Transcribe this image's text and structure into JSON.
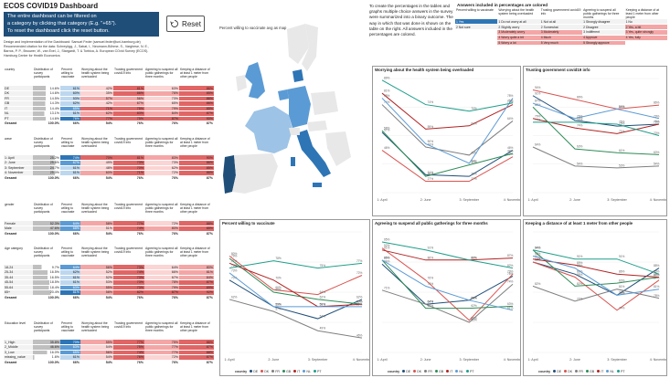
{
  "title": "ECOS COVID19 Dashboard",
  "intro": {
    "line1": "The entire dashboard can be filtered on",
    "line2": "a category by clicking that category (E.g. \"+65\").",
    "line3": "To reset the dashboard click the reset button."
  },
  "reset_label": "Reset",
  "credits": {
    "line1": "Design and implementation of the Dashboard: Samuel Feder (samuel.feder@uni-hamburg.de)",
    "line2": "Recommended citation for the data: Schreyögg, J., Sabat, I., Neumann-Böhme, S., Varghese, N. E.,",
    "line3": "Barros, P. P., Brouwer, W., van Exel, J., Stargardt, T. & Torbica, A. European COvid Survey (ECOS).",
    "line4": "Hamburg Center for Health Economics"
  },
  "colors": {
    "blue_dark": "#1f4e79",
    "bar_blue": "#2e75b6",
    "red1": "#e06666",
    "red2": "#f4a6a6",
    "red3": "#fbd4d4",
    "blue_light": "#bdd7ee",
    "gray": "#bfbfbf"
  },
  "col_headers": [
    "Distribution of survey participants",
    "Percent willing to vaccinate",
    "Worrying about the health system being overloaded",
    "Trusting government covid19 info",
    "Agreeing to suspend all public gatherings for three months",
    "Keeping a distance of at least 1 meter from other people"
  ],
  "sections": [
    {
      "name": "country",
      "rows": [
        {
          "label": "DE",
          "v": [
            "14.6%",
            "61%",
            "42%",
            "81%",
            "63%",
            "86%"
          ]
        },
        {
          "label": "DK",
          "v": [
            "14.6%",
            "60%",
            "35%",
            "86%",
            "76%",
            "85%"
          ]
        },
        {
          "label": "FR",
          "v": [
            "14.5%",
            "53%",
            "57%",
            "56%",
            "73%",
            "86%"
          ]
        },
        {
          "label": "GB",
          "v": [
            "14.3%",
            "62%",
            "42%",
            "67%",
            "65%",
            "86%"
          ]
        },
        {
          "label": "IT",
          "v": [
            "14.4%",
            "65%",
            "71%",
            "75%",
            "79%",
            "85%"
          ]
        },
        {
          "label": "NL",
          "v": [
            "13.1%",
            "61%",
            "62%",
            "83%",
            "84%",
            "87%"
          ]
        },
        {
          "label": "PT",
          "v": [
            "14.6%",
            "76%",
            "77%",
            "75%",
            "87%",
            "90%"
          ]
        }
      ],
      "total": {
        "label": "Gesamt",
        "v": [
          "100.0%",
          "66%",
          "54%",
          "76%",
          "76%",
          "87%"
        ]
      }
    },
    {
      "name": "wave",
      "rows": [
        {
          "label": "1: April",
          "v": [
            "25.2%",
            "74%",
            "70%",
            "81%",
            "83%",
            "90%"
          ]
        },
        {
          "label": "2: June",
          "v": [
            "25.6%",
            "67%",
            "49%",
            "73%",
            "73%",
            "86%"
          ]
        },
        {
          "label": "3: September",
          "v": [
            "24.7%",
            "61%",
            "48%",
            "70%",
            "62%",
            "85%"
          ]
        },
        {
          "label": "4: November",
          "v": "25.0%,61%,60%,71%,72%,86%"
        }
      ],
      "total": {
        "label": "Gesamt",
        "v": [
          "100.0%",
          "66%",
          "54%",
          "76%",
          "76%",
          "87%"
        ]
      }
    },
    {
      "name": "gender",
      "rows": [
        {
          "label": "Female",
          "v": [
            "52.3%",
            "64%",
            "58%",
            "77%",
            "72%",
            "88%"
          ]
        },
        {
          "label": "Male",
          "v": [
            "47.6%",
            "68%",
            "51%",
            "74%",
            "80%",
            "85%"
          ]
        }
      ],
      "total": {
        "label": "Gesamt",
        "v": [
          "100.0%",
          "66%",
          "54%",
          "76%",
          "76%",
          "87%"
        ]
      }
    },
    {
      "name": "Age category",
      "rows": [
        {
          "label": "18-24",
          "v": [
            "9.7%",
            "64%",
            "56%",
            "73%",
            "64%",
            "80%"
          ]
        },
        {
          "label": "25-34",
          "v": [
            "16.5%",
            "62%",
            "52%",
            "74%",
            "66%",
            "81%"
          ]
        },
        {
          "label": "35-44",
          "v": [
            "16.5%",
            "61%",
            "52%",
            "73%",
            "67%",
            "84%"
          ]
        },
        {
          "label": "45-54",
          "v": [
            "18.5%",
            "61%",
            "53%",
            "73%",
            "78%",
            "87%"
          ]
        },
        {
          "label": "55-64",
          "v": [
            "18.4%",
            "63%",
            "55%",
            "73%",
            "79%",
            "89%"
          ]
        },
        {
          "label": "65+",
          "v": [
            "20.4%",
            "81%",
            "58%",
            "82%",
            "87%",
            "92%"
          ]
        }
      ],
      "total": {
        "label": "Gesamt",
        "v": [
          "100.0%",
          "66%",
          "54%",
          "76%",
          "76%",
          "87%"
        ]
      }
    },
    {
      "name": "Education level",
      "rows": [
        {
          "label": "1_High",
          "v": [
            "35.8%",
            "70%",
            "55%",
            "77%",
            "75%",
            "86%"
          ]
        },
        {
          "label": "2_Middle",
          "v": [
            "46.6%",
            "63%",
            "54%",
            "75%",
            "77%",
            "87%"
          ]
        },
        {
          "label": "3_Low",
          "v": [
            "16.0%",
            "65%",
            "56%",
            "74%",
            "77%",
            "88%"
          ]
        },
        {
          "label": "missing_value",
          "v": [
            "1.6%",
            "61%",
            "54%",
            "76%",
            "72%",
            "87%"
          ]
        }
      ],
      "total": {
        "label": "Gesamt",
        "v": [
          "100.0%",
          "66%",
          "54%",
          "76%",
          "76%",
          "87%"
        ]
      }
    }
  ],
  "map_title": "Percent willing to vaccinate avg as map",
  "note": "To create the percentages in the tables and graphs multiple choice answers in the survey were summarized into a binary outcome. The way in which that was done is shown on the table on the right. All answers included in the percentages are colored.",
  "legend_table": {
    "title": "Answers included in percentages are colored",
    "headers": [
      "Percent willing to vaccinate",
      "Worrying about the health system being overloaded",
      "Trusting government covid19 info",
      "Agreeing to suspend all public gatherings for three months",
      "Keeping a distance of at least 1 meter from other people"
    ],
    "rows": [
      [
        "1 Yes",
        "1 Do not worry at all",
        "1 Not at all",
        "1 Strongly disagree",
        "1 No"
      ],
      [
        "2 Not sure",
        "2 Slightly worry",
        "2 Somewhat",
        "2 Disagree",
        "2 Yes, a bit"
      ],
      [
        "",
        "3 Moderately worry",
        "3 Moderately",
        "3 Indifferent",
        "3 Yes, quite strongly"
      ],
      [
        "",
        "4 Worry quite a bit",
        "4 Much",
        "4 Approve",
        "4 Yes, fully"
      ],
      [
        "",
        "5 Worry a lot",
        "5 Very much",
        "5 Strongly approve",
        ""
      ]
    ]
  },
  "chart_data": [
    {
      "type": "line",
      "title": "Worrying about the health system being overloaded",
      "categories": [
        "1: April",
        "2: June",
        "3: September",
        "4: November"
      ],
      "ylim": [
        20,
        90
      ],
      "series": [
        {
          "name": "DE",
          "values": [
            57,
            31,
            30,
            46
          ]
        },
        {
          "name": "DK",
          "values": [
            46,
            27,
            27,
            42
          ]
        },
        {
          "name": "FR",
          "values": [
            74,
            48,
            43,
            64
          ]
        },
        {
          "name": "GB",
          "values": [
            58,
            30,
            37,
            44
          ]
        },
        {
          "name": "IT",
          "values": [
            81,
            59,
            61,
            74
          ]
        },
        {
          "name": "NL",
          "values": [
            78,
            50,
            38,
            78
          ]
        },
        {
          "name": "PT",
          "values": [
            89,
            74,
            70,
            75
          ]
        }
      ]
    },
    {
      "type": "line",
      "title": "Trusting government covid19 info",
      "categories": [
        "1: April",
        "2: June",
        "3: September",
        "4: November"
      ],
      "ylim": [
        40,
        100
      ],
      "series": [
        {
          "name": "DE",
          "values": [
            91,
            78,
            75,
            76
          ]
        },
        {
          "name": "DK",
          "values": [
            94,
            89,
            84,
            86
          ]
        },
        {
          "name": "FR",
          "values": [
            64,
            54,
            53,
            54
          ]
        },
        {
          "name": "GB",
          "values": [
            85,
            63,
            61,
            60
          ]
        },
        {
          "name": "IT",
          "values": [
            79,
            74,
            71,
            76
          ]
        },
        {
          "name": "NL",
          "values": [
            87,
            79,
            84,
            79
          ]
        },
        {
          "name": "PT",
          "values": [
            77,
            77,
            76,
            70
          ]
        }
      ]
    },
    {
      "type": "line",
      "title": "Percent willing to vaccinate",
      "categories": [
        "1: April",
        "2: June",
        "3: September",
        "4: November"
      ],
      "ylim": [
        40,
        90
      ],
      "series": [
        {
          "name": "DE",
          "values": [
            70,
            59,
            54,
            62
          ]
        },
        {
          "name": "DK",
          "values": [
            80,
            66,
            64,
            72
          ]
        },
        {
          "name": "FR",
          "values": [
            62,
            57,
            49,
            46
          ]
        },
        {
          "name": "GB",
          "values": [
            79,
            65,
            62,
            60
          ]
        },
        {
          "name": "IT",
          "values": [
            77,
            70,
            59,
            60
          ]
        },
        {
          "name": "NL",
          "values": [
            73,
            59,
            59,
            59
          ]
        },
        {
          "name": "PT",
          "values": [
            75,
            78,
            75,
            77
          ]
        }
      ]
    },
    {
      "type": "line",
      "title": "Agreeing to suspend all public gatherings for three months",
      "categories": [
        "1: April",
        "2: June",
        "3: September",
        "4: November"
      ],
      "ylim": [
        40,
        100
      ],
      "series": [
        {
          "name": "DE",
          "values": [
            84,
            64,
            66,
            78
          ]
        },
        {
          "name": "DK",
          "values": [
            92,
            76,
            56,
            79
          ]
        },
        {
          "name": "FR",
          "values": [
            71,
            64,
            55,
            74
          ]
        },
        {
          "name": "GB",
          "values": [
            86,
            62,
            62,
            63
          ]
        },
        {
          "name": "IT",
          "values": [
            91,
            86,
            86,
            87
          ]
        },
        {
          "name": "NL",
          "values": [
            86,
            73,
            66,
            61
          ]
        },
        {
          "name": "PT",
          "values": [
            95,
            91,
            86,
            82
          ]
        }
      ]
    },
    {
      "type": "line",
      "title": "Keeping a distance of at least 1 meter from other people",
      "categories": [
        "1: April",
        "2: June",
        "3: September",
        "4: November"
      ],
      "ylim": [
        60,
        100
      ],
      "series": [
        {
          "name": "DE",
          "values": [
            90,
            86,
            79,
            88
          ]
        },
        {
          "name": "DK",
          "values": [
            90,
            85,
            74,
            84
          ]
        },
        {
          "name": "FR",
          "values": [
            82,
            77,
            81,
            78
          ]
        },
        {
          "name": "GB",
          "values": [
            94,
            82,
            83,
            85
          ]
        },
        {
          "name": "IT",
          "values": [
            91,
            89,
            86,
            85
          ]
        },
        {
          "name": "NL",
          "values": [
            92,
            88,
            79,
            81
          ]
        },
        {
          "name": "PT",
          "values": [
            94,
            91,
            91,
            86
          ]
        }
      ]
    }
  ],
  "chart_legend": {
    "prefix": "country",
    "items": [
      {
        "name": "DE",
        "color": "#1f4e79"
      },
      {
        "name": "DK",
        "color": "#d9534f"
      },
      {
        "name": "FR",
        "color": "#7f7f7f"
      },
      {
        "name": "GB",
        "color": "#2e8b57"
      },
      {
        "name": "IT",
        "color": "#b22222"
      },
      {
        "name": "NL",
        "color": "#5b9bd5"
      },
      {
        "name": "PT",
        "color": "#1f9e8a"
      }
    ]
  }
}
